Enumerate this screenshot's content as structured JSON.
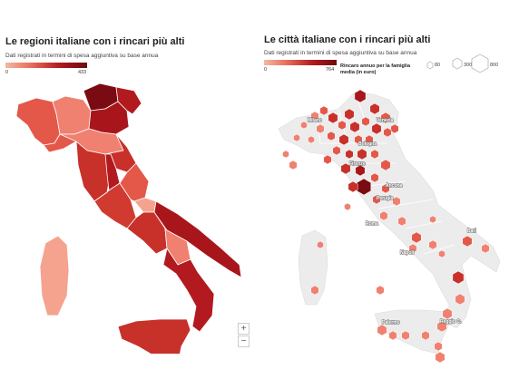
{
  "left": {
    "title": "Le regioni italiane con i rincari più alti",
    "subtitle": "Dati registrati in termini di spesa aggiuntiva su base annua",
    "scale_min": "0",
    "scale_max": "433",
    "zoom_in": "+",
    "zoom_out": "−"
  },
  "right": {
    "title": "Le città italiane con i rincari più alti",
    "subtitle": "Dati registrati in termini di spesa aggiuntiva su base annua",
    "scale_min": "0",
    "scale_max": "764",
    "legend_title": "Rincaro annuo per la famiglia media (in euro)",
    "size_labels": [
      "80",
      "300",
      "800"
    ],
    "city_labels": [
      "Milano",
      "Venezia",
      "Bologna",
      "Firenze",
      "Ancona",
      "Perugia",
      "Roma",
      "Bari",
      "Napoli",
      "Reggio C.",
      "Palermo"
    ]
  },
  "colors": {
    "light": "#f5a38e",
    "mid": "#e4584a",
    "dark": "#c8302a",
    "darker": "#a8161c",
    "darkest": "#7a0b12",
    "land": "#ececec"
  }
}
